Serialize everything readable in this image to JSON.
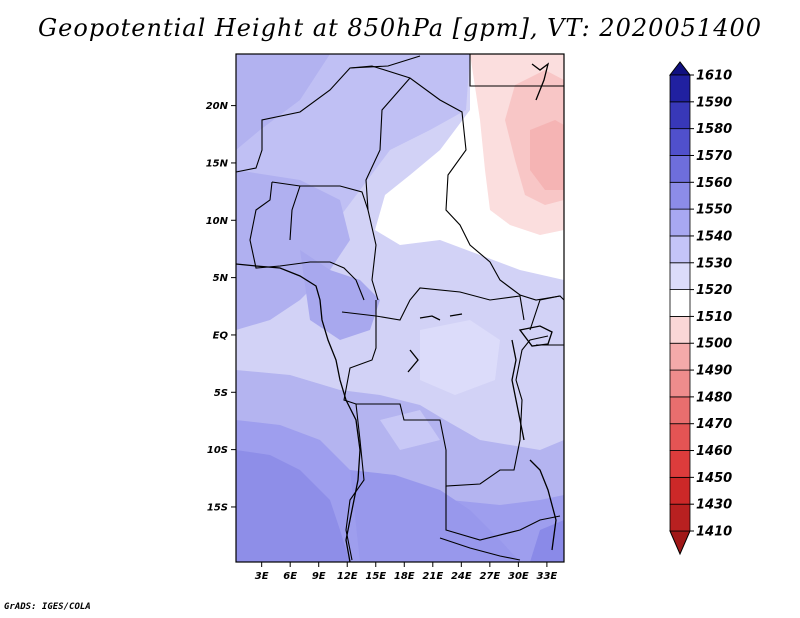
{
  "figure": {
    "title": "Geopotential Height at 850hPa [gpm], VT: 2020051400",
    "footer": "GrADS: IGES/COLA"
  },
  "chart_data": {
    "type": "heatmap",
    "variable": "Geopotential Height at 850hPa",
    "units": "gpm",
    "valid_time": "2020051400",
    "longitude_ticks": [
      "3E",
      "6E",
      "9E",
      "12E",
      "15E",
      "18E",
      "21E",
      "24E",
      "27E",
      "30E",
      "33E"
    ],
    "latitude_ticks": [
      "20N",
      "15N",
      "10N",
      "5N",
      "EQ",
      "5S",
      "10S",
      "15S"
    ],
    "lon_range": [
      0.3,
      34.8
    ],
    "lat_range": [
      -19.8,
      24.5
    ],
    "colorbar": {
      "levels": [
        1410,
        1430,
        1450,
        1460,
        1470,
        1480,
        1490,
        1500,
        1510,
        1520,
        1530,
        1540,
        1550,
        1560,
        1570,
        1580,
        1590,
        1610
      ],
      "colors": [
        "#a01818",
        "#b82020",
        "#cc2828",
        "#dd3c3c",
        "#e45454",
        "#e86e6e",
        "#ee8c8c",
        "#f4aaaa",
        "#fad6d6",
        "#ffffff",
        "#dcdcfa",
        "#c4c4f8",
        "#a8a8f2",
        "#8c8ce8",
        "#6e6edc",
        "#5050cc",
        "#3838b8",
        "#2020a0",
        "#101080"
      ]
    }
  }
}
